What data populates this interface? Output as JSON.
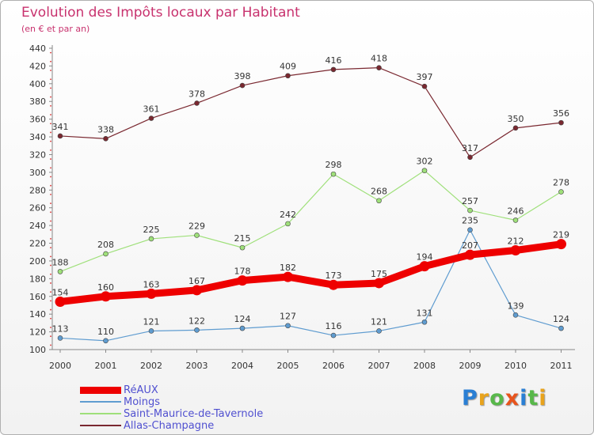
{
  "header": {
    "title": "Evolution des Impôts locaux par Habitant",
    "subtitle": "(en € et par an)"
  },
  "brand": {
    "logo_text": "Proxiti",
    "logo_colors": [
      "#2a7fd4",
      "#e8a31c",
      "#58b84a",
      "#e8541c",
      "#2a7fd4",
      "#58b84a",
      "#e8a31c"
    ]
  },
  "chart_data": {
    "type": "line",
    "title": "Evolution des Impôts locaux par Habitant",
    "subtitle": "(en € et par an)",
    "xlabel": "",
    "ylabel": "",
    "x": [
      "2000",
      "2001",
      "2002",
      "2003",
      "2004",
      "2005",
      "2006",
      "2007",
      "2008",
      "2009",
      "2010",
      "2011"
    ],
    "ylim": [
      100,
      440
    ],
    "yticks": [
      100,
      120,
      140,
      160,
      180,
      200,
      220,
      240,
      260,
      280,
      300,
      320,
      340,
      360,
      380,
      400,
      420,
      440
    ],
    "grid": false,
    "legend_position": "bottom-left",
    "series": [
      {
        "name": "RéAUX",
        "color": "#ee0000",
        "values": [
          154,
          160,
          163,
          167,
          178,
          182,
          173,
          175,
          194,
          207,
          212,
          219
        ]
      },
      {
        "name": "Moings",
        "color": "#5f9cd0",
        "values": [
          113,
          110,
          121,
          122,
          124,
          127,
          116,
          121,
          131,
          235,
          139,
          124
        ]
      },
      {
        "name": "Saint-Maurice-de-Tavernole",
        "color": "#9fe07a",
        "values": [
          188,
          208,
          225,
          229,
          215,
          242,
          298,
          268,
          302,
          257,
          246,
          278
        ]
      },
      {
        "name": "Allas-Champagne",
        "color": "#7a2830",
        "values": [
          341,
          338,
          361,
          378,
          398,
          409,
          416,
          418,
          397,
          317,
          350,
          356
        ]
      }
    ]
  }
}
